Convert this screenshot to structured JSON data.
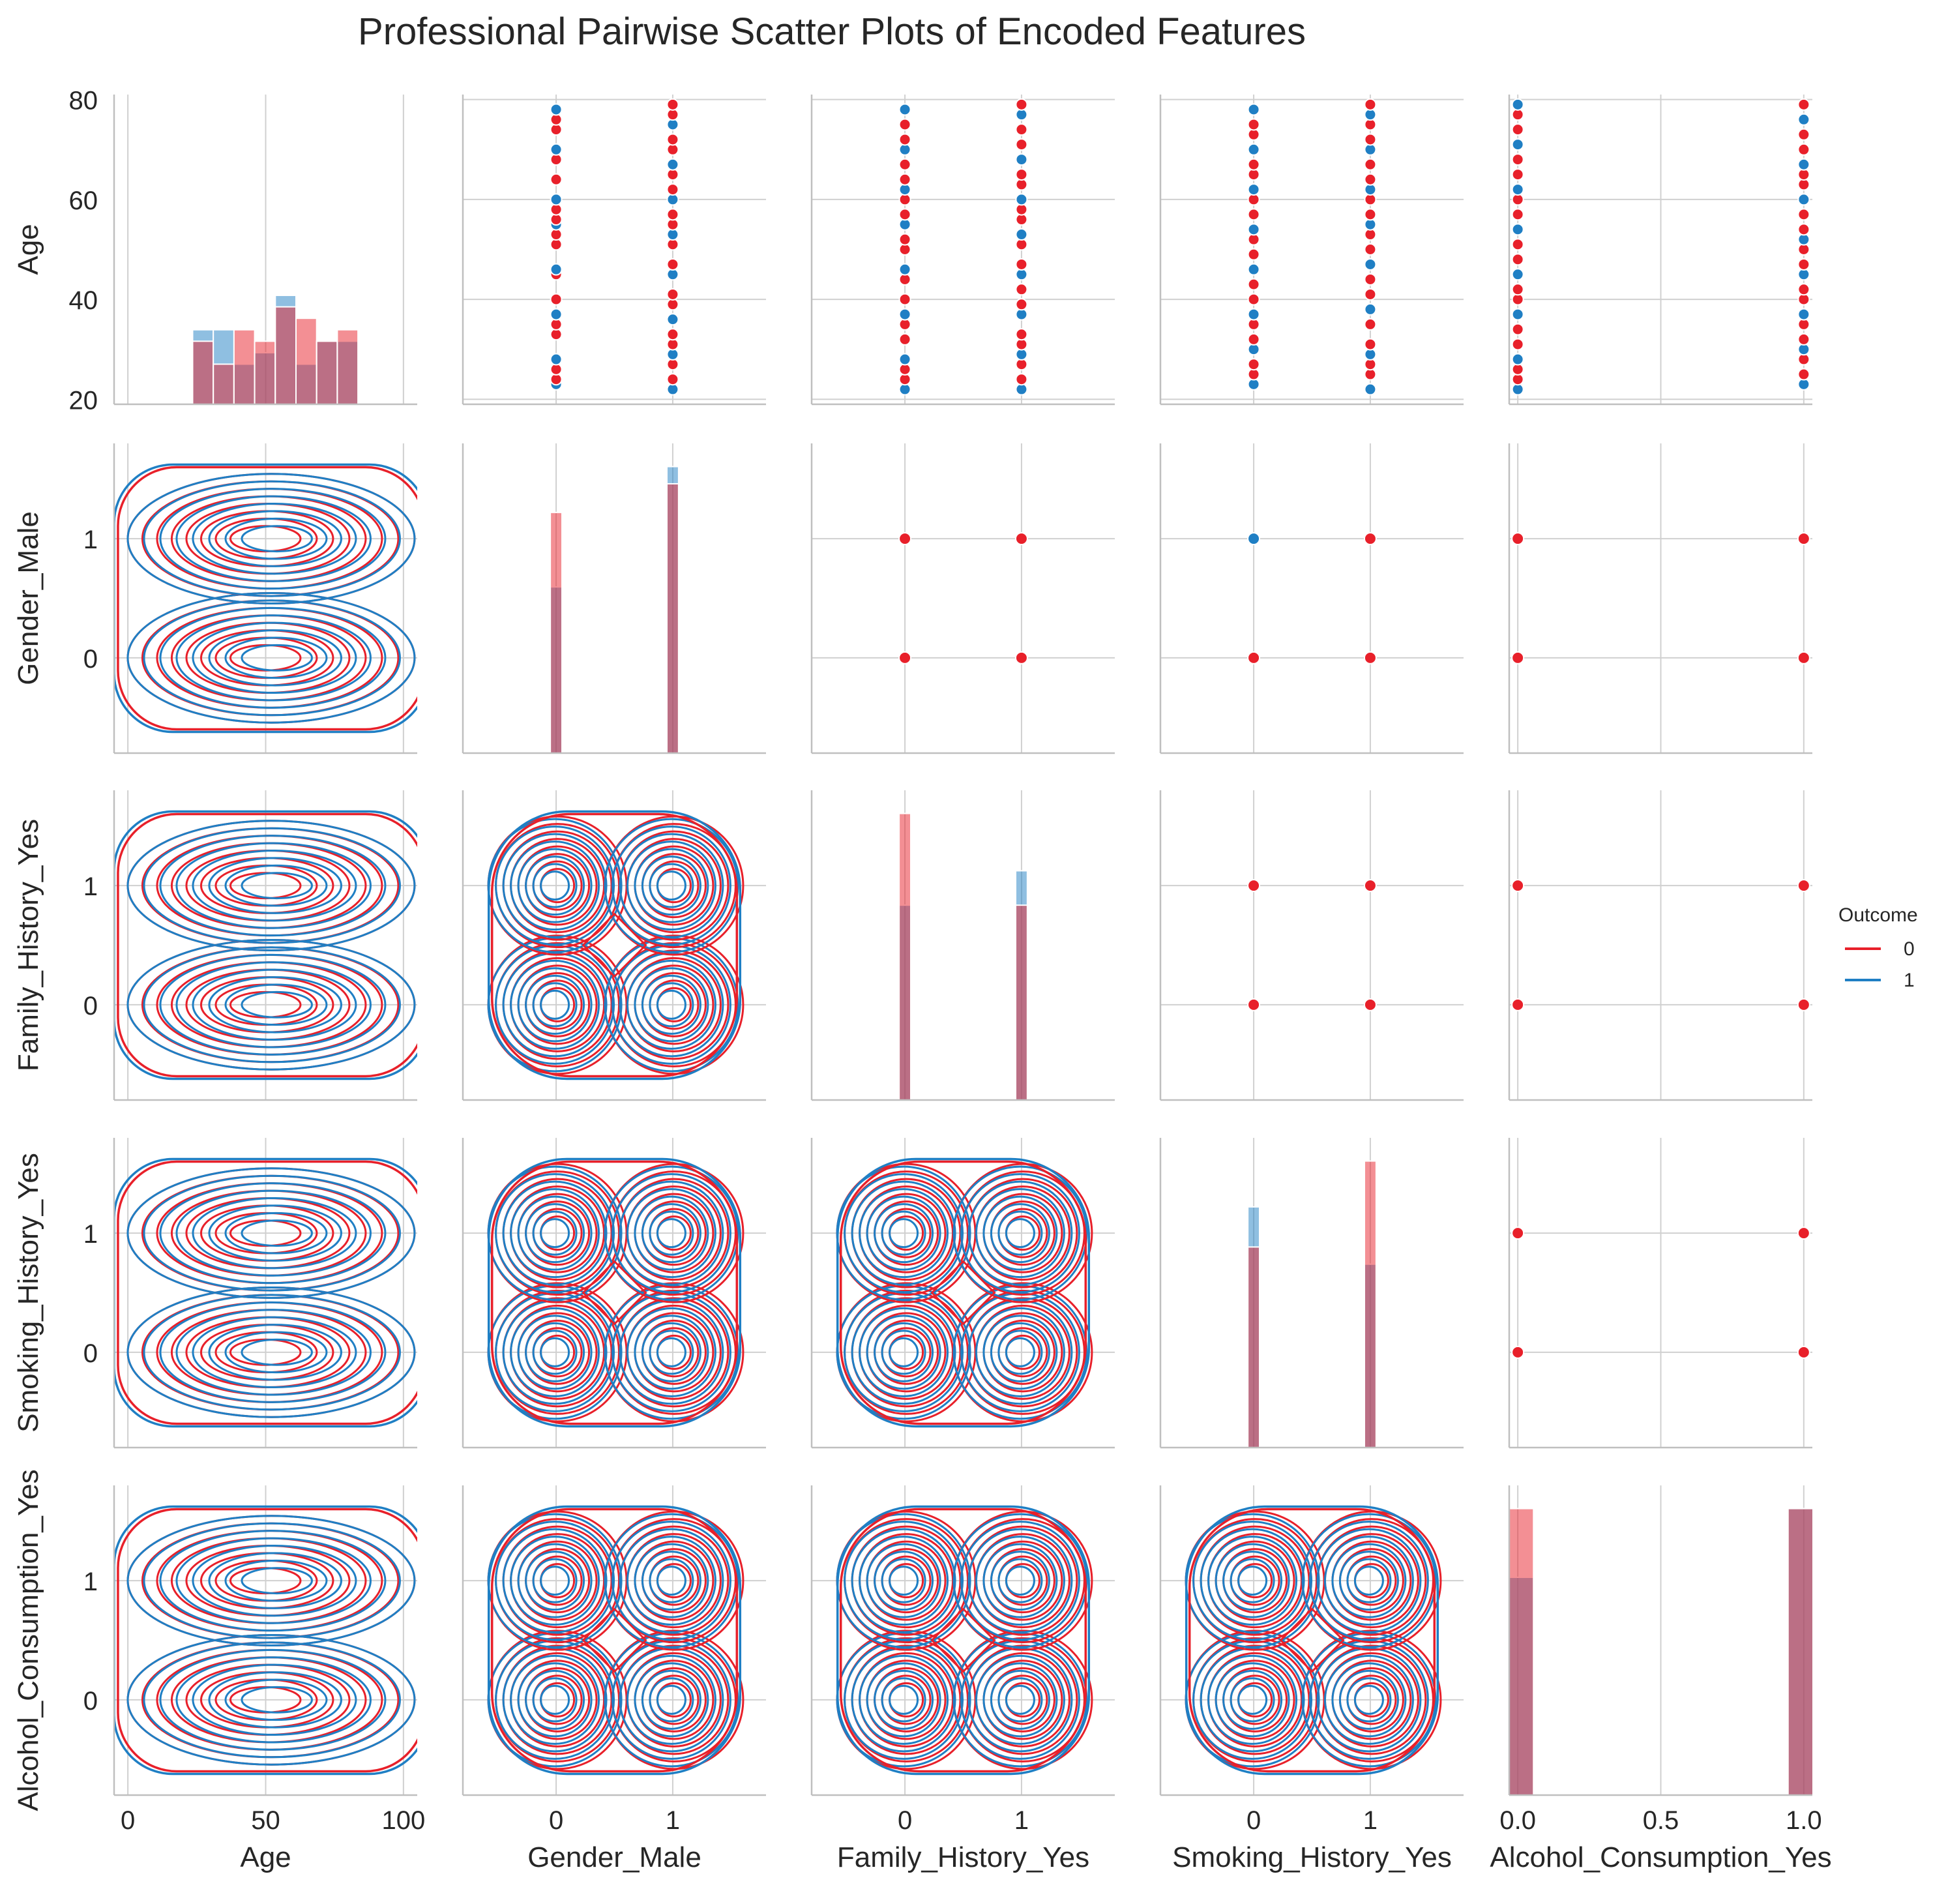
{
  "chart_data": {
    "type": "pairplot",
    "title": "Professional Pairwise Scatter Plots of Encoded Features",
    "variables": [
      "Age",
      "Gender_Male",
      "Family_History_Yes",
      "Smoking_History_Yes",
      "Alcohol_Consumption_Yes"
    ],
    "axes": {
      "Age": {
        "range": [
          -5,
          105
        ],
        "ticks": [
          0,
          50,
          100
        ],
        "tick_labels": [
          "0",
          "50",
          "100"
        ],
        "row_range": [
          19,
          81
        ],
        "row_ticks": [
          20,
          40,
          60,
          80
        ],
        "row_tick_labels": [
          "20",
          "40",
          "60",
          "80"
        ]
      },
      "Gender_Male": {
        "range": [
          -0.8,
          1.8
        ],
        "ticks": [
          0,
          1
        ],
        "tick_labels": [
          "0",
          "1"
        ]
      },
      "Family_History_Yes": {
        "range": [
          -0.8,
          1.8
        ],
        "ticks": [
          0,
          1
        ],
        "tick_labels": [
          "0",
          "1"
        ]
      },
      "Smoking_History_Yes": {
        "range": [
          -0.8,
          1.8
        ],
        "ticks": [
          0,
          1
        ],
        "tick_labels": [
          "0",
          "1"
        ]
      },
      "Alcohol_Consumption_Yes": {
        "range": [
          -0.03,
          1.03
        ],
        "ticks": [
          0,
          0.5,
          1
        ],
        "tick_labels": [
          "0.0",
          "0.5",
          "1.0"
        ],
        "row_range": [
          -0.8,
          1.8
        ],
        "row_ticks": [
          0,
          1
        ],
        "row_tick_labels": [
          "0",
          "1"
        ]
      }
    },
    "hue": "Outcome",
    "legend": {
      "title": "Outcome",
      "entries": [
        "0",
        "1"
      ],
      "position": "right"
    },
    "colors": {
      "0": "#e8202a",
      "1": "#1f7fc4"
    },
    "diagonal_histograms": {
      "Age": {
        "bins": [
          23.5,
          31.0,
          38.5,
          46.0,
          53.5,
          61.0,
          68.5,
          76.0,
          83.5
        ],
        "outcome_0": [
          11,
          7,
          13,
          11,
          17,
          15,
          11,
          13
        ],
        "outcome_1": [
          13,
          13,
          7,
          9,
          19,
          7,
          11,
          11
        ]
      },
      "Gender_Male": {
        "categories": [
          0,
          1
        ],
        "outcome_0": [
          42,
          47
        ],
        "outcome_1": [
          29,
          50
        ]
      },
      "Family_History_Yes": {
        "categories": [
          0,
          1
        ],
        "outcome_0": [
          50,
          34
        ],
        "outcome_1": [
          34,
          40
        ]
      },
      "Smoking_History_Yes": {
        "categories": [
          0,
          1
        ],
        "outcome_0": [
          35,
          50
        ],
        "outcome_1": [
          42,
          32
        ]
      },
      "Alcohol_Consumption_Yes": {
        "categories": [
          0,
          1
        ],
        "outcome_0": [
          50,
          50
        ],
        "outcome_1": [
          38,
          50
        ]
      }
    },
    "age_scatter_values": {
      "Gender_Male_0": [
        23,
        24,
        26,
        28,
        33,
        35,
        37,
        40,
        45,
        46,
        51,
        53,
        55,
        56,
        58,
        60,
        64,
        68,
        70,
        74,
        76,
        78
      ],
      "Gender_Male_1": [
        22,
        24,
        27,
        29,
        31,
        33,
        36,
        39,
        41,
        45,
        47,
        51,
        53,
        55,
        57,
        60,
        62,
        65,
        67,
        70,
        72,
        75,
        77,
        79
      ],
      "Family_History_Yes_0": [
        22,
        24,
        26,
        28,
        32,
        35,
        37,
        40,
        44,
        46,
        50,
        52,
        55,
        57,
        60,
        62,
        64,
        67,
        70,
        72,
        75,
        78
      ],
      "Family_History_Yes_1": [
        22,
        24,
        27,
        29,
        31,
        33,
        37,
        39,
        42,
        45,
        47,
        51,
        53,
        56,
        58,
        60,
        63,
        65,
        68,
        71,
        74,
        77,
        79
      ],
      "Smoking_History_Yes_0": [
        23,
        25,
        27,
        30,
        32,
        35,
        37,
        40,
        43,
        46,
        49,
        52,
        54,
        57,
        60,
        62,
        65,
        67,
        70,
        73,
        75,
        78
      ],
      "Smoking_History_Yes_1": [
        22,
        25,
        27,
        29,
        31,
        35,
        38,
        41,
        44,
        47,
        50,
        53,
        55,
        57,
        60,
        62,
        64,
        67,
        70,
        72,
        75,
        77,
        79
      ],
      "Alcohol_Consumption_Yes_0": [
        22,
        24,
        26,
        28,
        31,
        34,
        37,
        40,
        42,
        45,
        48,
        51,
        54,
        57,
        60,
        62,
        65,
        68,
        71,
        74,
        77,
        79
      ],
      "Alcohol_Consumption_Yes_1": [
        23,
        25,
        28,
        30,
        32,
        35,
        37,
        40,
        42,
        45,
        47,
        50,
        52,
        54,
        57,
        60,
        63,
        65,
        67,
        70,
        73,
        76,
        79
      ]
    },
    "binary_scatter_points": [
      [
        0,
        0
      ],
      [
        0,
        1
      ],
      [
        1,
        0
      ],
      [
        1,
        1
      ]
    ],
    "kde_note": "Lower triangle shows bivariate KDE contours per Outcome; binary pairs show four density modes at (0,0),(0,1),(1,0),(1,1)",
    "grid": true
  }
}
